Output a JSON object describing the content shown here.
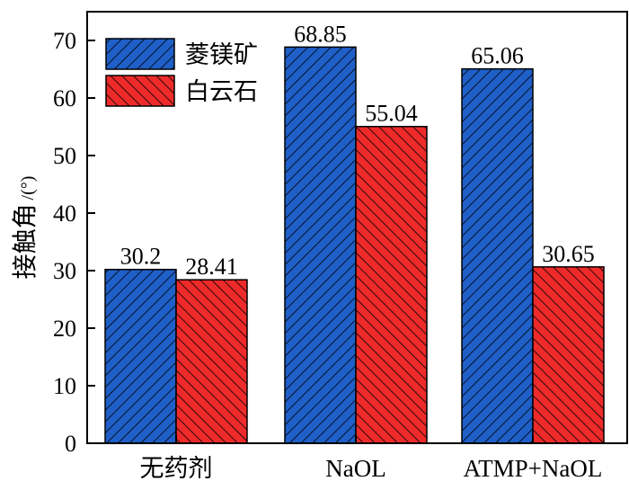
{
  "chart_data": {
    "type": "bar",
    "categories": [
      "无药剂",
      "NaOL",
      "ATMP+NaOL"
    ],
    "series": [
      {
        "name": "菱镁矿",
        "values": [
          30.2,
          68.85,
          65.06
        ],
        "labels": [
          "30.2",
          "68.85",
          "65.06"
        ],
        "color": "#1f5fc8",
        "hatch": "forward-diagonal"
      },
      {
        "name": "白云石",
        "values": [
          28.41,
          55.04,
          30.65
        ],
        "labels": [
          "28.41",
          "55.04",
          "30.65"
        ],
        "color": "#ee2a2a",
        "hatch": "back-diagonal"
      }
    ],
    "ylabel": "接触角",
    "ylabel_unit": "/(°)",
    "xlabel": "",
    "ylim": [
      0,
      75
    ],
    "yticks": [
      "0",
      "10",
      "20",
      "30",
      "40",
      "50",
      "60",
      "70"
    ],
    "legend_position": "top-left",
    "grid": false
  }
}
